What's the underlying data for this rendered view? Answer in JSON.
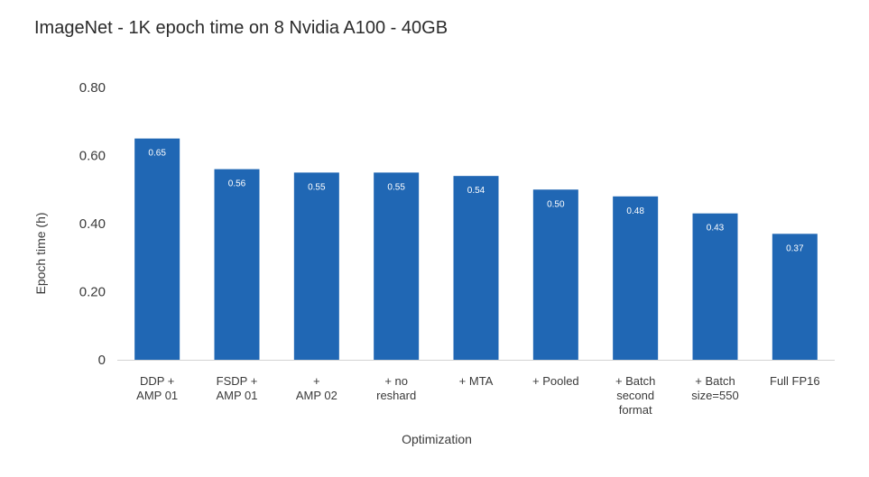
{
  "chart_data": {
    "type": "bar",
    "title": "ImageNet - 1K epoch time on 8 Nvidia A100 - 40GB",
    "xlabel": "Optimization",
    "ylabel": "Epoch time (h)",
    "ylim": [
      0,
      0.8
    ],
    "yticks": [
      {
        "value": 0,
        "label": "0"
      },
      {
        "value": 0.2,
        "label": "0.20"
      },
      {
        "value": 0.4,
        "label": "0.40"
      },
      {
        "value": 0.6,
        "label": "0.60"
      },
      {
        "value": 0.8,
        "label": "0.80"
      }
    ],
    "categories": [
      [
        "DDP +",
        "AMP 01"
      ],
      [
        "FSDP +",
        "AMP 01"
      ],
      [
        "+",
        "AMP 02"
      ],
      [
        "+ no",
        "reshard"
      ],
      [
        "+ MTA"
      ],
      [
        "+ Pooled"
      ],
      [
        "+ Batch",
        "second",
        "format"
      ],
      [
        "+ Batch",
        "size=550"
      ],
      [
        "Full FP16"
      ]
    ],
    "values": [
      0.65,
      0.56,
      0.55,
      0.55,
      0.54,
      0.5,
      0.48,
      0.43,
      0.37
    ],
    "value_labels": [
      "0.65",
      "0.56",
      "0.55",
      "0.55",
      "0.54",
      "0.50",
      "0.48",
      "0.43",
      "0.37"
    ],
    "bar_color": "#2067b4",
    "grid": false
  }
}
